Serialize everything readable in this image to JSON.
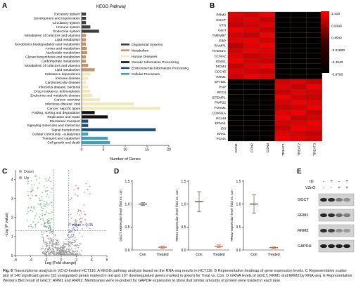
{
  "panels": {
    "a": {
      "letter": "A",
      "title": "KEGG Pathway",
      "xlabel": "Number of Genes",
      "xticks": [
        0,
        5,
        10,
        15,
        20
      ],
      "legend": [
        {
          "label": "Organismal Systems",
          "color": "#3d3d3d"
        },
        {
          "label": "Metabolism",
          "color": "#c49468"
        },
        {
          "label": "Human Diseases",
          "color": "#f2e8c0"
        },
        {
          "label": "Genetic Information Processing",
          "color": "#111111"
        },
        {
          "label": "Environmental Information Processing",
          "color": "#1d4e73"
        },
        {
          "label": "Cellular Processes",
          "color": "#46a0b8"
        }
      ]
    },
    "b": {
      "letter": "B",
      "scale": [
        "1.410",
        "0.9340",
        "0.4580",
        "-0.01800",
        "-0.4940",
        "-0.9700"
      ],
      "rows": [
        "RRM2",
        "GGCT",
        "VTN",
        "GGH",
        "TMEM97",
        "EBP",
        "RAMP1",
        "RAD51C",
        "CCNA2",
        "IGNS1",
        "MCM4",
        "CDC45",
        "RRM1",
        "EFHD1",
        "PNP",
        "RFC4",
        "EFEMP1",
        "PMP22",
        "FOXM1",
        "CDKN1A",
        "UCAM",
        "EFNA1",
        "ID3",
        "BAK1",
        "PCNA"
      ],
      "cols": [
        "CON1",
        "CON2",
        "CON3",
        "TREAT1",
        "TREAT2",
        "TREAT3"
      ]
    },
    "c": {
      "letter": "C",
      "legend_down": "Down",
      "legend_up": "Up",
      "ylabel": "-Log (P value)",
      "xlabel": "Log (Fold change)",
      "pvalue_label": "P value < 0.05",
      "xticks": [
        "-6",
        "-4",
        "-2",
        "0",
        "2",
        "4",
        "6"
      ],
      "yticks": [
        "0",
        "1",
        "2",
        "3",
        "4"
      ],
      "down_color": "#7ec88a",
      "up_color": "#d98a9c"
    },
    "d": {
      "letter": "D",
      "plots": [
        {
          "ylabel": "GGCT expression level (fold vs. con",
          "yticks": [
            "0.0",
            "0.5",
            "1.0",
            "1.5"
          ],
          "cats": [
            "Con",
            "Treated"
          ]
        },
        {
          "ylabel": "RRM1 expression level (fold vs. con",
          "yticks": [
            "0.0",
            "0.5",
            "1.0",
            "1.5"
          ],
          "cats": [
            "Con",
            "Treated"
          ]
        },
        {
          "ylabel": "RRM2 expression level (fold vs. con",
          "yticks": [
            "0.0",
            "0.5",
            "1.0",
            "1.5"
          ],
          "cats": [
            "Con",
            "Treated"
          ]
        }
      ]
    },
    "e": {
      "letter": "E",
      "row_id": "ID",
      "row_vzno": "VZnO",
      "signs_id": [
        "-",
        "+",
        "-",
        "+"
      ],
      "signs_vzno": [
        "-",
        "-",
        "+",
        "+"
      ],
      "bands": [
        "GGCT",
        "RRM1",
        "RRM2",
        "GAPDH"
      ]
    }
  },
  "chart_data": [
    {
      "type": "bar",
      "title": "KEGG Pathway",
      "xlabel": "Number of Genes",
      "xlim": [
        0,
        20
      ],
      "series": [
        {
          "name": "Organismal Systems",
          "color": "#3d3d3d"
        },
        {
          "name": "Metabolism",
          "color": "#c49468"
        },
        {
          "name": "Human Diseases",
          "color": "#f2e8c0"
        },
        {
          "name": "Genetic Information Processing",
          "color": "#111111"
        },
        {
          "name": "Environmental Information Processing",
          "color": "#1d4e73"
        },
        {
          "name": "Cellular Processes",
          "color": "#46a0b8"
        }
      ],
      "categories": [
        "Excretory system",
        "Development and regeneration",
        "Circulatory system",
        "Immune system",
        "Endocrine system",
        "Metabolism of cofactors and vitamins",
        "Lipid metabolism",
        "Xenobiotics biodegradation and metabolism",
        "Amino acid metabolism",
        "Nucleotide metabolism",
        "Glycan biosynthesis and metabolism",
        "Carbohydrate metabolism",
        "Metabolism of cofactors and vitamins",
        "Lipid metabolism",
        "Substance dependence",
        "Immune disease",
        "Cardiovascular disease",
        "Infectious disease: bacterial",
        "Drug resistance: antineoplastic",
        "Endocrine and metabolic disease",
        "Cancer: overview",
        "Infectious disease: viral",
        "Cancer: sepcific types",
        "Folding, sorting and degradation",
        "Replication and repair",
        "Membrane transport",
        "Signaling molecules and interaction",
        "Signal transduction",
        "Cellular community - eukaryotes",
        "Transport and catabolism",
        "Cell growth and death"
      ],
      "values": [
        1,
        1,
        1,
        2,
        4,
        1,
        1,
        1,
        1.2,
        1.3,
        1,
        1,
        1.5,
        3,
        2,
        1.5,
        1,
        1.5,
        2,
        2.5,
        4.2,
        12,
        18,
        3,
        6,
        1.5,
        1.5,
        17,
        1.5,
        6,
        6.5
      ],
      "groups": [
        0,
        0,
        0,
        0,
        0,
        1,
        1,
        1,
        1,
        1,
        1,
        1,
        1,
        1,
        2,
        2,
        2,
        2,
        2,
        2,
        2,
        2,
        2,
        3,
        3,
        4,
        4,
        4,
        5,
        5,
        5
      ]
    },
    {
      "type": "heatmap",
      "rows": [
        "RRM2",
        "GGCT",
        "VTN",
        "GGH",
        "TMEM97",
        "EBP",
        "RAMP1",
        "RAD51C",
        "CCNA2",
        "IGNS1",
        "MCM4",
        "CDC45",
        "RRM1",
        "EFHD1",
        "PNP",
        "RFC4",
        "EFEMP1",
        "PMP22",
        "FOXM1",
        "CDKN1A",
        "UCAM",
        "EFNA1",
        "ID3",
        "BAK1",
        "PCNA"
      ],
      "cols": [
        "CON1",
        "CON2",
        "CON3",
        "TREAT1",
        "TREAT2",
        "TREAT3"
      ],
      "range": [
        -0.97,
        1.41
      ],
      "values": [
        [
          1.2,
          1.1,
          1.3,
          -0.9,
          -0.9,
          -0.9
        ],
        [
          1.1,
          1.2,
          1.0,
          -0.9,
          -0.9,
          -0.9
        ],
        [
          1.0,
          1.1,
          1.2,
          -0.9,
          -0.9,
          -0.9
        ],
        [
          1.3,
          1.2,
          1.0,
          -0.9,
          -0.8,
          -0.9
        ],
        [
          1.1,
          1.0,
          1.3,
          -0.9,
          -0.9,
          -0.8
        ],
        [
          1.2,
          1.3,
          1.1,
          -0.9,
          -0.9,
          -0.9
        ],
        [
          0.9,
          1.2,
          1.3,
          -0.9,
          -0.9,
          -0.9
        ],
        [
          1.1,
          1.3,
          1.2,
          -0.8,
          -0.9,
          -0.9
        ],
        [
          1.2,
          1.0,
          1.1,
          -0.9,
          -0.9,
          -0.9
        ],
        [
          1.3,
          1.1,
          1.0,
          -0.9,
          -0.9,
          -0.8
        ],
        [
          1.0,
          1.2,
          1.3,
          -0.9,
          -0.9,
          -0.9
        ],
        [
          1.2,
          1.1,
          1.0,
          -0.9,
          -0.9,
          -0.9
        ],
        [
          1.1,
          1.3,
          1.2,
          -0.9,
          -0.8,
          -0.9
        ],
        [
          -0.9,
          -0.8,
          -0.9,
          1.1,
          1.2,
          1.0
        ],
        [
          -0.9,
          -0.9,
          -0.8,
          1.2,
          1.0,
          1.3
        ],
        [
          -0.9,
          -0.9,
          -0.9,
          1.0,
          1.2,
          1.1
        ],
        [
          -0.8,
          -0.9,
          -0.9,
          1.3,
          1.1,
          1.0
        ],
        [
          -0.9,
          -0.8,
          -0.9,
          1.1,
          1.3,
          1.2
        ],
        [
          -0.9,
          -0.9,
          -0.9,
          1.0,
          1.1,
          1.3
        ],
        [
          -0.9,
          -0.9,
          -0.8,
          1.2,
          1.3,
          1.0
        ],
        [
          -0.9,
          -0.9,
          -0.9,
          1.3,
          1.0,
          1.1
        ],
        [
          -0.8,
          -0.9,
          -0.9,
          1.1,
          1.2,
          1.3
        ],
        [
          -0.9,
          -0.8,
          -0.9,
          1.0,
          1.3,
          1.2
        ],
        [
          -0.9,
          -0.9,
          -0.9,
          1.2,
          1.1,
          1.0
        ],
        [
          -0.9,
          -0.9,
          -0.8,
          1.3,
          1.2,
          1.1
        ]
      ]
    },
    {
      "type": "scatter",
      "xlabel": "Log (Fold change)",
      "ylabel": "-Log (P value)",
      "xlim": [
        -6,
        6
      ],
      "ylim": [
        0,
        4.5
      ],
      "thresholds": {
        "x": [
          -1,
          1
        ],
        "y": 1.3
      },
      "series": [
        {
          "name": "Down"
        },
        {
          "name": "Up"
        }
      ]
    },
    {
      "type": "bar",
      "categories": [
        "Con",
        "Treated"
      ],
      "series": [
        {
          "name": "GGCT",
          "values": [
            1.0,
            0.06
          ],
          "errors": [
            0.03,
            0.02
          ]
        },
        {
          "name": "RRM1",
          "values": [
            1.05,
            0.08
          ],
          "errors": [
            0.22,
            0.03
          ]
        },
        {
          "name": "RRM2",
          "values": [
            1.0,
            0.05
          ],
          "errors": [
            0.2,
            0.02
          ]
        }
      ],
      "ylim": [
        0,
        1.5
      ]
    }
  ],
  "caption": {
    "bold": "Fig. 6",
    "text": " Transcriptome analysis in VZnO-treated HCT116. A KEGG pathway analysis based on the RNA-seq results in HCT116. B Representative heatmap of gene expression levels. C Representative scatter plot of 140 significant genes (33 unregulated genes marked in red and 107 downregulated genes marked in green) for Treat vs. Con. D mRNA levels of GGCT, RRM1 and RRM2 by RNA-seq. E Representative Western Blot result of GGCT, RRM1 and RRM2. Membranes were re-probed for GAPDH expression to show that similar amounts of protein were loaded in each lane"
  }
}
